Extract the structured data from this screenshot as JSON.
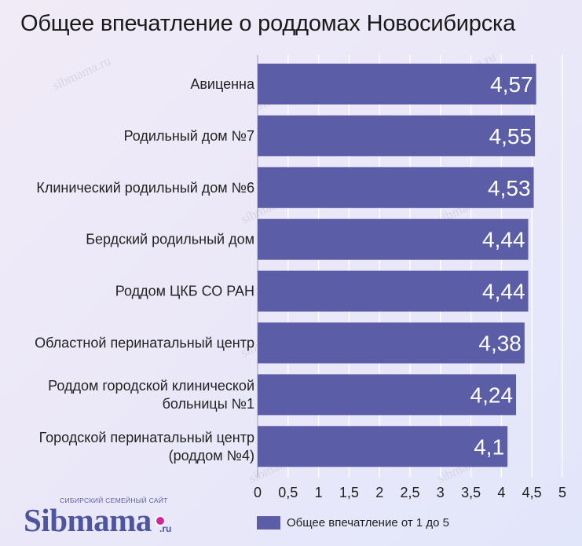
{
  "chart_data": {
    "type": "bar",
    "orientation": "horizontal",
    "title": "Общее впечатление о роддомах Новосибирска",
    "categories": [
      [
        "Авиценна"
      ],
      [
        "Родильный дом №7"
      ],
      [
        "Клинический родильный дом №6"
      ],
      [
        "Бердский родильный дом"
      ],
      [
        "Роддом ЦКБ СО РАН"
      ],
      [
        "Областной перинатальный центр"
      ],
      [
        "Роддом городской клинической",
        "больницы №1"
      ],
      [
        "Городской перинатальный центр",
        "(роддом №4)"
      ]
    ],
    "series": [
      {
        "name": "Общее впечатление от 1 до 5",
        "values": [
          4.57,
          4.55,
          4.53,
          4.44,
          4.44,
          4.38,
          4.24,
          4.1
        ],
        "value_labels": [
          "4,57",
          "4,55",
          "4,53",
          "4,44",
          "4,44",
          "4,38",
          "4,24",
          "4,1"
        ],
        "color": "#5b5ea6"
      }
    ],
    "xlim": [
      0,
      5
    ],
    "x_ticks": [
      0,
      0.5,
      1,
      1.5,
      2,
      2.5,
      3,
      3.5,
      4,
      4.5,
      5
    ],
    "x_tick_labels": [
      "0",
      "0,5",
      "1",
      "1,5",
      "2",
      "2,5",
      "3",
      "3,5",
      "4",
      "4,5",
      "5"
    ],
    "grid": true,
    "legend_position": "bottom"
  },
  "colors": {
    "bar": "#5b5ea6",
    "grid": "#ffffff",
    "accent": "#d6249f"
  },
  "watermark": "sibmama.ru",
  "logo": {
    "tagline": "СИБИРСКИЙ СЕМЕЙНЫЙ САЙТ",
    "name": "Sibmama",
    "suffix": ".ru"
  }
}
